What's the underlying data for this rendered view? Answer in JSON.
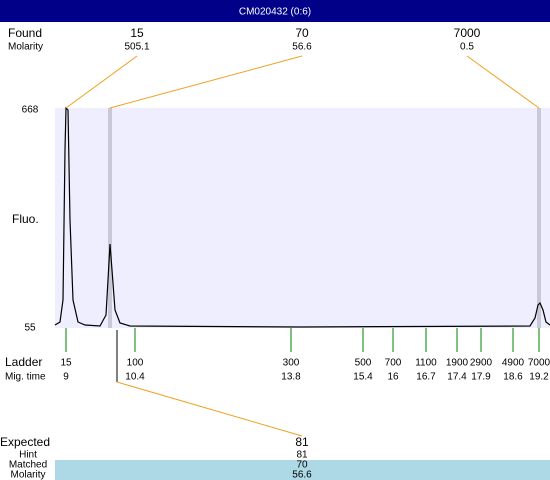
{
  "title": "CM020432 (0:6)",
  "found": {
    "label": "Found",
    "molarity_label": "Molarity",
    "peaks": [
      {
        "size": 15,
        "molarity": 505.1
      },
      {
        "size": 70,
        "molarity": 56.6
      },
      {
        "size": 7000,
        "molarity": 0.5
      }
    ]
  },
  "plot": {
    "y_label": "Fluo.",
    "ylim": [
      55,
      668
    ],
    "yticks": [
      55,
      668
    ]
  },
  "ladder": {
    "label": "Ladder",
    "time_label": "Mig. time",
    "items": [
      {
        "size": 15,
        "time": 9
      },
      {
        "size": 100,
        "time": 10.4
      },
      {
        "size": 300,
        "time": 13.8
      },
      {
        "size": 500,
        "time": 15.4
      },
      {
        "size": 700,
        "time": 16
      },
      {
        "size": 1100,
        "time": 16.7
      },
      {
        "size": 1900,
        "time": 17.4
      },
      {
        "size": 2900,
        "time": 17.9
      },
      {
        "size": 4900,
        "time": 18.6
      },
      {
        "size": 7000,
        "time": 19.2
      }
    ]
  },
  "expected": {
    "label": "Expected",
    "value": 81,
    "hint_label": "Hint",
    "hint": 81,
    "matched_label": "Matched",
    "matched": 70,
    "molarity_label": "Molarity",
    "molarity": 56.6
  }
}
